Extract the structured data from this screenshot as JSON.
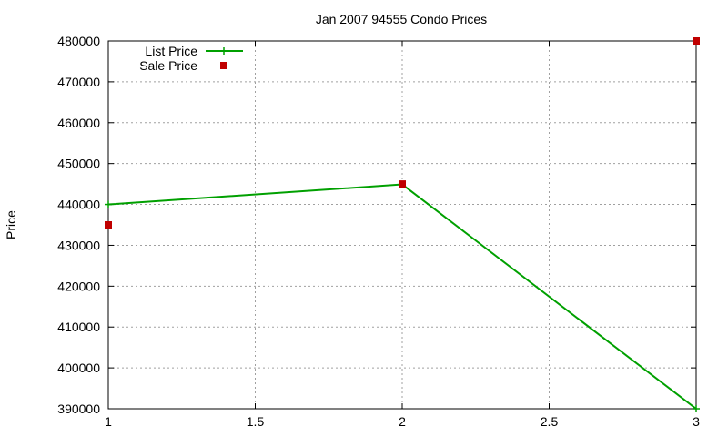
{
  "chart_data": {
    "type": "line",
    "title": "Jan 2007 94555 Condo Prices",
    "xlabel": "",
    "ylabel": "Price",
    "xlim": [
      1,
      3
    ],
    "ylim": [
      390000,
      480000
    ],
    "x_ticks": [
      1,
      1.5,
      2,
      2.5,
      3
    ],
    "y_ticks": [
      390000,
      400000,
      410000,
      420000,
      430000,
      440000,
      450000,
      460000,
      470000,
      480000
    ],
    "grid": true,
    "legend_position": "top-left",
    "series": [
      {
        "name": "List Price",
        "type": "line",
        "marker": "plus",
        "color": "#00a000",
        "x": [
          1,
          2,
          3
        ],
        "y": [
          440000,
          444900,
          390000
        ]
      },
      {
        "name": "Sale Price",
        "type": "scatter",
        "marker": "square",
        "color": "#c00000",
        "x": [
          1,
          2,
          3
        ],
        "y": [
          435000,
          445000,
          480000
        ]
      }
    ]
  }
}
